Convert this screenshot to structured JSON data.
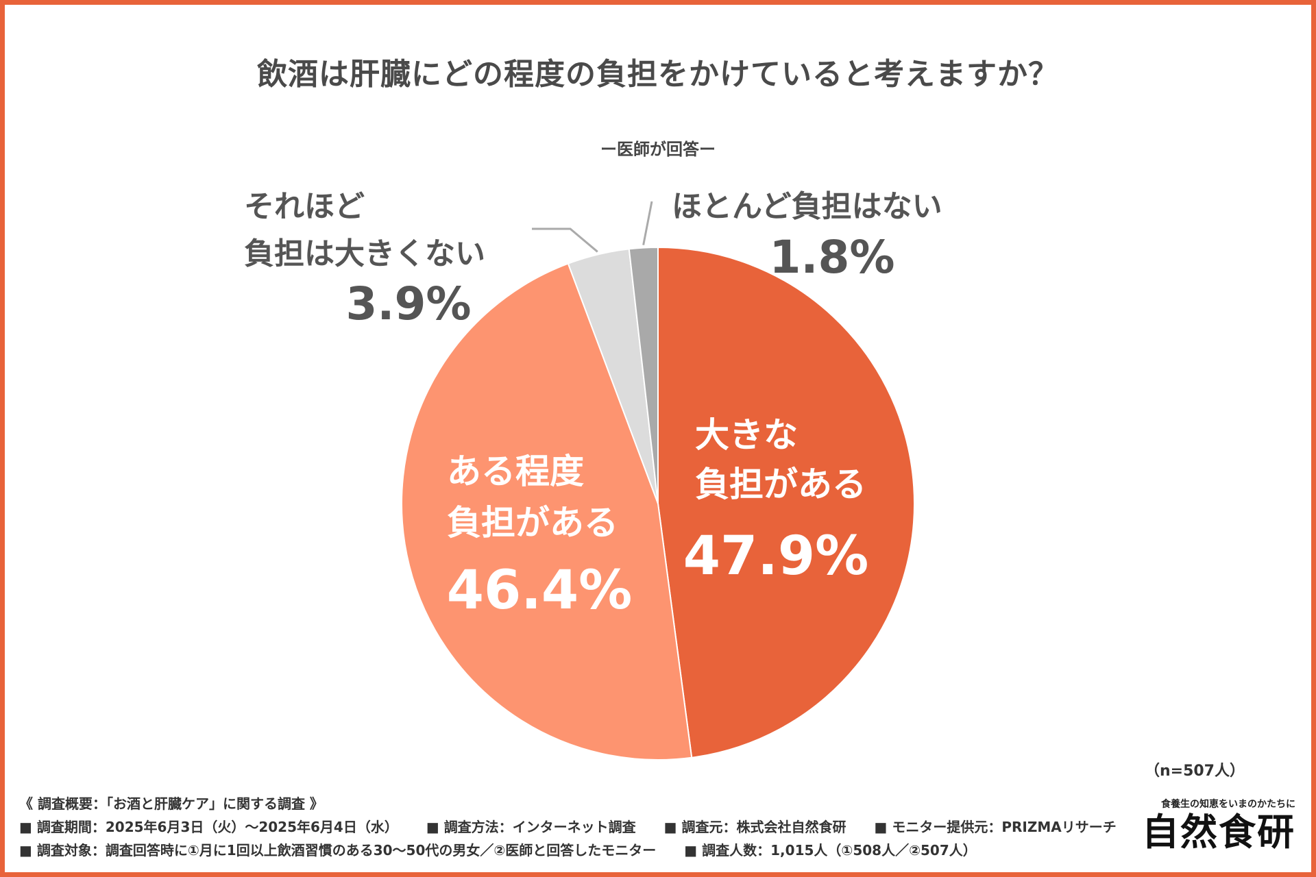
{
  "colors": {
    "border": "#e8633a",
    "slice_large": "#e8633a",
    "slice_some": "#fd9470",
    "slice_not_much": "#dcdcdc",
    "slice_hardly": "#a9a9a9"
  },
  "chart_data": {
    "type": "pie",
    "title": "飲酒は肝臓にどの程度の負担をかけていると考えますか？",
    "subtitle": "ー医師が回答ー",
    "start": "12 o'clock, clockwise",
    "slices": [
      {
        "label_lines": [
          "大きな",
          "負担がある"
        ],
        "value": 47.9,
        "display": "47.9%",
        "color": "#e8633a"
      },
      {
        "label_lines": [
          "ある程度",
          "負担がある"
        ],
        "value": 46.4,
        "display": "46.4%",
        "color": "#fd9470"
      },
      {
        "label_lines": [
          "それほど",
          "負担は大きくない"
        ],
        "value": 3.9,
        "display": "3.9%",
        "color": "#dcdcdc"
      },
      {
        "label_lines": [
          "ほとんど負担はない"
        ],
        "value": 1.8,
        "display": "1.8%",
        "color": "#a9a9a9"
      }
    ]
  },
  "sample_size": "（n=507人）",
  "survey": {
    "heading": "《 調査概要：「お酒と肝臓ケア」に関する調査 》",
    "row2": [
      "■ 調査期間：2025年6月3日（火）～2025年6月4日（水）",
      "■ 調査方法：インターネット調査",
      "■ 調査元：株式会社自然食研",
      "■ モニター提供元：PRIZMAリサーチ"
    ],
    "row3": [
      "■ 調査対象：調査回答時に①月に1回以上飲酒習慣のある30～50代の男女／②医師と回答したモニター",
      "■ 調査人数：1,015人（①508人／②507人）"
    ]
  },
  "brand": {
    "tagline": "食養生の知恵をいまのかたちに",
    "name": "自然食研"
  }
}
